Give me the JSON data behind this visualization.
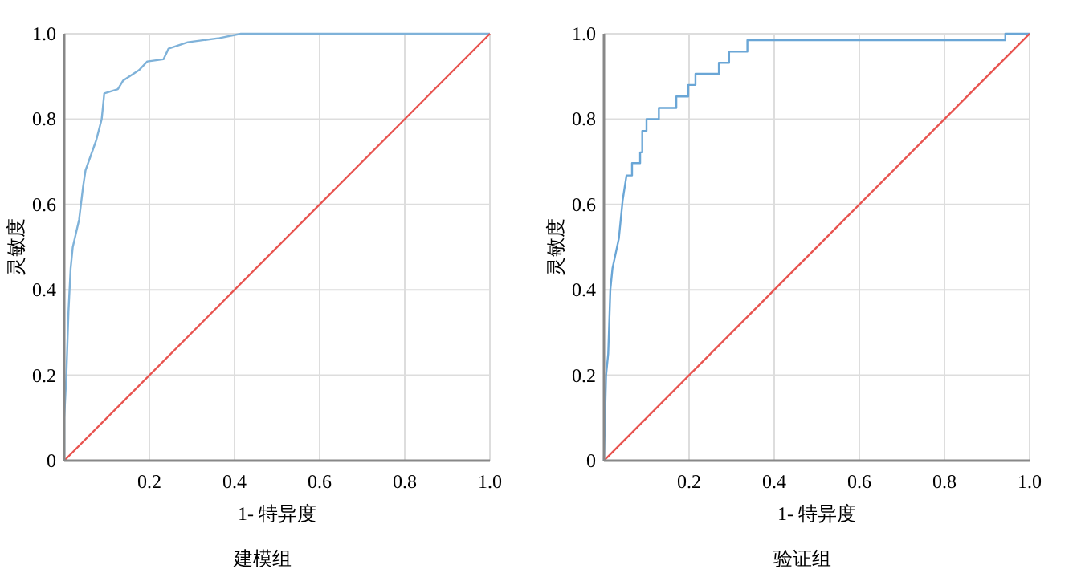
{
  "chart_data": [
    {
      "type": "line",
      "title": "建模组",
      "xlabel": "1- 特异度",
      "ylabel": "灵敏度",
      "xlim": [
        0,
        1
      ],
      "ylim": [
        0,
        1
      ],
      "xticks": [
        0.2,
        0.4,
        0.6,
        0.8,
        {
          "value": 1,
          "label": "1.0"
        }
      ],
      "yticks": [
        0,
        0.2,
        0.4,
        0.6,
        0.8,
        {
          "value": 1,
          "label": "1.0"
        }
      ],
      "grid": true,
      "series": [
        {
          "color": "#7fb2d9",
          "x": [
            0,
            0,
            0.005,
            0.01,
            0.015,
            0.02,
            0.035,
            0.044,
            0.05,
            0.075,
            0.088,
            0.094,
            0.126,
            0.138,
            0.176,
            0.195,
            0.233,
            0.245,
            0.29,
            0.365,
            0.415,
            1
          ],
          "values": [
            0,
            0.1,
            0.2,
            0.35,
            0.45,
            0.5,
            0.565,
            0.64,
            0.68,
            0.75,
            0.8,
            0.86,
            0.87,
            0.89,
            0.915,
            0.935,
            0.94,
            0.965,
            0.98,
            0.99,
            1,
            1
          ]
        },
        {
          "color": "#e8534f",
          "x": [
            0,
            1
          ],
          "values": [
            0,
            1
          ]
        }
      ]
    },
    {
      "type": "line",
      "title": "验证组",
      "xlabel": "1- 特异度",
      "ylabel": "灵敏度",
      "xlim": [
        0,
        1
      ],
      "ylim": [
        0,
        1
      ],
      "xticks": [
        0.2,
        0.4,
        0.6,
        0.8,
        {
          "value": 1,
          "label": "1.0"
        }
      ],
      "yticks": [
        0,
        0.2,
        0.4,
        0.6,
        0.8,
        {
          "value": 1,
          "label": "1.0"
        }
      ],
      "grid": true,
      "series": [
        {
          "color": "#6aa6d6",
          "x": [
            0,
            0.005,
            0.01,
            0.015,
            0.02,
            0.035,
            0.044,
            0.053,
            0.066,
            0.066,
            0.085,
            0.085,
            0.09,
            0.09,
            0.1,
            0.1,
            0.129,
            0.129,
            0.17,
            0.17,
            0.198,
            0.198,
            0.215,
            0.215,
            0.27,
            0.27,
            0.294,
            0.294,
            0.337,
            0.337,
            0.943,
            0.943,
            1
          ],
          "values": [
            0,
            0.2,
            0.25,
            0.4,
            0.45,
            0.52,
            0.61,
            0.668,
            0.668,
            0.697,
            0.697,
            0.722,
            0.722,
            0.772,
            0.772,
            0.8,
            0.8,
            0.826,
            0.826,
            0.853,
            0.853,
            0.88,
            0.88,
            0.906,
            0.906,
            0.932,
            0.932,
            0.958,
            0.958,
            0.985,
            0.985,
            1,
            1
          ]
        },
        {
          "color": "#e8534f",
          "x": [
            0,
            1
          ],
          "values": [
            0,
            1
          ]
        }
      ]
    }
  ]
}
